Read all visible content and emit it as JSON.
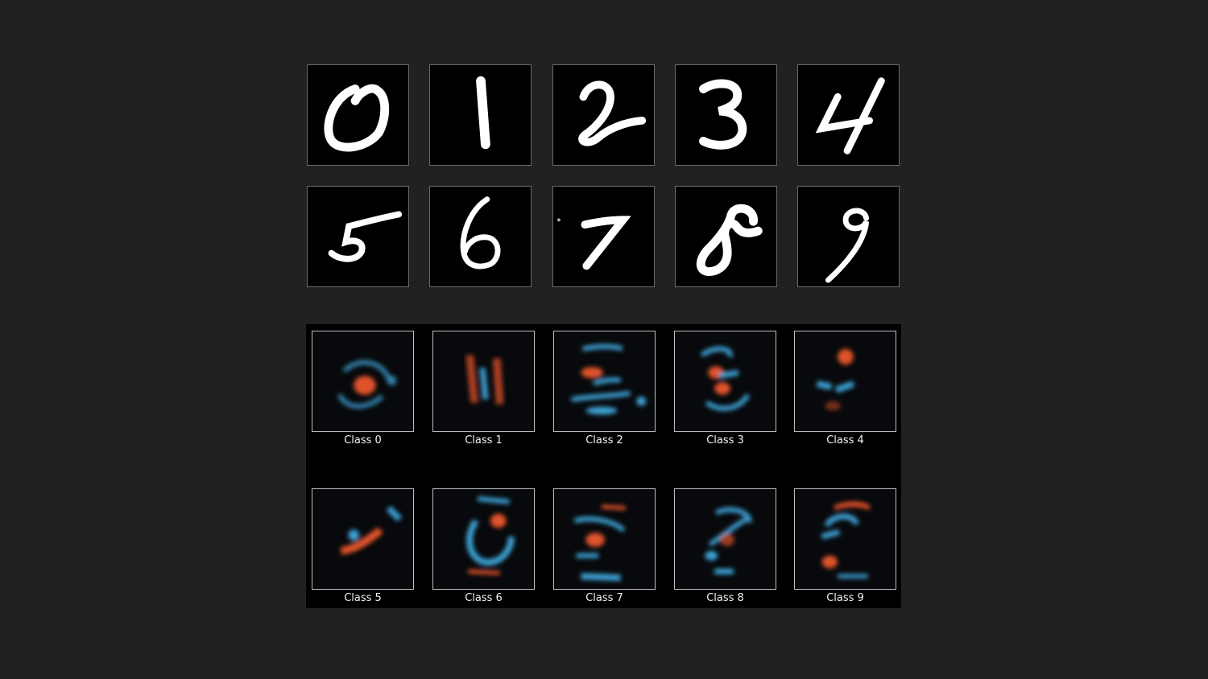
{
  "digits": {
    "samples": [
      {
        "digit": "0"
      },
      {
        "digit": "1"
      },
      {
        "digit": "2"
      },
      {
        "digit": "3"
      },
      {
        "digit": "4"
      },
      {
        "digit": "5"
      },
      {
        "digit": "6"
      },
      {
        "digit": "7"
      },
      {
        "digit": "8"
      },
      {
        "digit": "9"
      }
    ]
  },
  "weights": {
    "colors": {
      "positive": "#e0522a",
      "negative": "#3da3d6"
    },
    "classes": [
      {
        "label": "Class 0"
      },
      {
        "label": "Class 1"
      },
      {
        "label": "Class 2"
      },
      {
        "label": "Class 3"
      },
      {
        "label": "Class 4"
      },
      {
        "label": "Class 5"
      },
      {
        "label": "Class 6"
      },
      {
        "label": "Class 7"
      },
      {
        "label": "Class 8"
      },
      {
        "label": "Class 9"
      }
    ]
  }
}
